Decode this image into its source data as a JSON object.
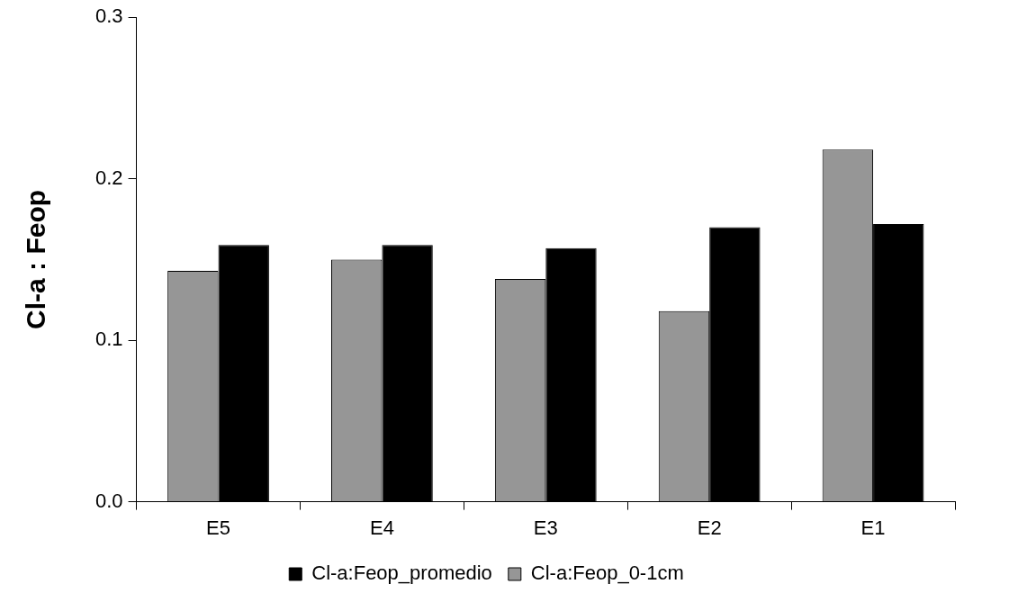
{
  "chart_data": {
    "type": "bar",
    "ylabel": "Cl-a : Feop",
    "categories": [
      "E5",
      "E4",
      "E3",
      "E2",
      "E1"
    ],
    "series": [
      {
        "name": "Cl-a:Feop_0-1cm",
        "color": "#969696",
        "values": [
          0.143,
          0.15,
          0.138,
          0.118,
          0.218
        ]
      },
      {
        "name": "Cl-a:Feop_promedio",
        "color": "#000000",
        "values": [
          0.159,
          0.159,
          0.157,
          0.17,
          0.172
        ]
      }
    ],
    "ylim": [
      0,
      0.3
    ],
    "yticks": [
      {
        "value": 0,
        "label": "0.0"
      },
      0.1,
      0.2,
      0.3
    ],
    "grid": false,
    "legend": "bottom"
  }
}
